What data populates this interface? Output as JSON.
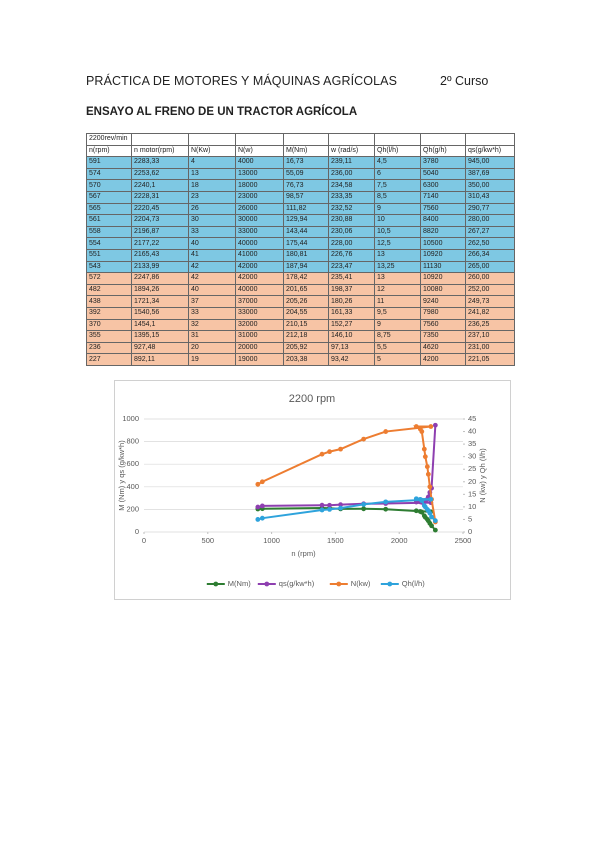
{
  "header": {
    "title": "PRÁCTICA DE MOTORES Y MÁQUINAS AGRÍCOLAS",
    "course": "2º Curso",
    "subtitle": "ENSAYO AL FRENO DE UN TRACTOR AGRÍCOLA"
  },
  "table": {
    "title_cell": "2200rev/min",
    "header": [
      "n(rpm)",
      "n motor(rpm)",
      "N(Kw)",
      "N(w)",
      "M(Nm)",
      "w (rad/s)",
      "Qh(l/h)",
      "Qh(g/h)",
      "qs(g/kw*h)"
    ],
    "rows": [
      [
        "591",
        "2283,33",
        "4",
        "4000",
        "16,73",
        "239,11",
        "4,5",
        "3780",
        "945,00"
      ],
      [
        "574",
        "2253,62",
        "13",
        "13000",
        "55,09",
        "236,00",
        "6",
        "5040",
        "387,69"
      ],
      [
        "570",
        "2240,1",
        "18",
        "18000",
        "76,73",
        "234,58",
        "7,5",
        "6300",
        "350,00"
      ],
      [
        "567",
        "2228,31",
        "23",
        "23000",
        "98,57",
        "233,35",
        "8,5",
        "7140",
        "310,43"
      ],
      [
        "565",
        "2220,45",
        "26",
        "26000",
        "111,82",
        "232,52",
        "9",
        "7560",
        "290,77"
      ],
      [
        "561",
        "2204,73",
        "30",
        "30000",
        "129,94",
        "230,88",
        "10",
        "8400",
        "280,00"
      ],
      [
        "558",
        "2196,87",
        "33",
        "33000",
        "143,44",
        "230,06",
        "10,5",
        "8820",
        "267,27"
      ],
      [
        "554",
        "2177,22",
        "40",
        "40000",
        "175,44",
        "228,00",
        "12,5",
        "10500",
        "262,50"
      ],
      [
        "551",
        "2165,43",
        "41",
        "41000",
        "180,81",
        "226,76",
        "13",
        "10920",
        "266,34"
      ],
      [
        "543",
        "2133,99",
        "42",
        "42000",
        "187,94",
        "223,47",
        "13,25",
        "11130",
        "265,00"
      ],
      [
        "572",
        "2247,86",
        "42",
        "42000",
        "178,42",
        "235,41",
        "13",
        "10920",
        "260,00"
      ],
      [
        "482",
        "1894,26",
        "40",
        "40000",
        "201,65",
        "198,37",
        "12",
        "10080",
        "252,00"
      ],
      [
        "438",
        "1721,34",
        "37",
        "37000",
        "205,26",
        "180,26",
        "11",
        "9240",
        "249,73"
      ],
      [
        "392",
        "1540,56",
        "33",
        "33000",
        "204,55",
        "161,33",
        "9,5",
        "7980",
        "241,82"
      ],
      [
        "370",
        "1454,1",
        "32",
        "32000",
        "210,15",
        "152,27",
        "9",
        "7560",
        "236,25"
      ],
      [
        "355",
        "1395,15",
        "31",
        "31000",
        "212,18",
        "146,10",
        "8,75",
        "7350",
        "237,10"
      ],
      [
        "236",
        "927,48",
        "20",
        "20000",
        "205,92",
        "97,13",
        "5,5",
        "4620",
        "231,00"
      ],
      [
        "227",
        "892,11",
        "19",
        "19000",
        "203,38",
        "93,42",
        "5",
        "4200",
        "221,05"
      ]
    ]
  },
  "chart_data": {
    "type": "line",
    "title": "2200 rpm",
    "x_label": "n (rpm)",
    "y_label": "M (Nm) y qs (g/kw*h)",
    "y2_label": "N (kw) y Qh (l/h)",
    "x": [
      2283.33,
      2253.62,
      2240.1,
      2228.31,
      2220.45,
      2204.73,
      2196.87,
      2177.22,
      2165.43,
      2133.99,
      2247.86,
      1894.26,
      1721.34,
      1540.56,
      1454.1,
      1395.15,
      927.48,
      892.11
    ],
    "xlim": [
      0,
      2500
    ],
    "xticks": [
      0,
      500,
      1000,
      1500,
      2000,
      2500
    ],
    "ylim": [
      0,
      1000
    ],
    "yticks": [
      0,
      200,
      400,
      600,
      800,
      1000
    ],
    "y2lim": [
      0,
      45
    ],
    "y2ticks": [
      0,
      5,
      10,
      15,
      20,
      25,
      30,
      35,
      40,
      45
    ],
    "grid": true,
    "legend": "bottom",
    "series": [
      {
        "name": "M(Nm)",
        "color": "#2e7d32",
        "values": [
          16.73,
          55.09,
          76.73,
          98.57,
          111.82,
          129.94,
          143.44,
          175.44,
          180.81,
          187.94,
          178.42,
          201.65,
          205.26,
          204.55,
          210.15,
          212.18,
          205.92,
          203.38
        ]
      },
      {
        "name": "qs(g/kw*h)",
        "color": "#8e3fb0",
        "values": [
          945.0,
          387.69,
          350.0,
          310.43,
          290.77,
          280.0,
          267.27,
          262.5,
          266.34,
          265.0,
          260.0,
          252.0,
          249.73,
          241.82,
          236.25,
          237.1,
          231.0,
          221.05
        ]
      },
      {
        "name": "N(kw)",
        "color": "#ed7d31",
        "axis": "y2",
        "values": [
          4,
          13,
          18,
          23,
          26,
          30,
          33,
          40,
          41,
          42,
          42,
          40,
          37,
          33,
          32,
          31,
          20,
          19
        ]
      },
      {
        "name": "Qh(l/h)",
        "color": "#2ea3dc",
        "axis": "y2",
        "values": [
          4.5,
          6,
          7.5,
          8.5,
          9,
          10,
          10.5,
          12.5,
          13,
          13.25,
          13,
          12,
          11,
          9.5,
          9,
          8.75,
          5.5,
          5
        ]
      }
    ]
  }
}
